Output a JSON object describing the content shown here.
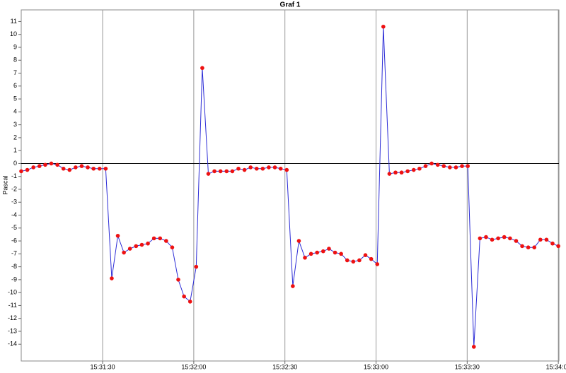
{
  "chart_data": {
    "type": "line",
    "title": "Graf 1",
    "y_label": "Pascal",
    "x": [
      55863.2,
      55865.2,
      55867.2,
      55869.2,
      55871.1,
      55873.1,
      55875.1,
      55877.1,
      55879.1,
      55881.1,
      55883.1,
      55885.1,
      55887.0,
      55889.0,
      55891.0,
      55893.0,
      55895.0,
      55897.0,
      55899.0,
      55901.0,
      55902.9,
      55904.9,
      55906.9,
      55908.9,
      55910.9,
      55912.9,
      55914.9,
      55916.8,
      55918.8,
      55920.8,
      55922.8,
      55924.8,
      55926.8,
      55928.8,
      55930.8,
      55932.7,
      55934.7,
      55936.7,
      55938.7,
      55940.7,
      55942.7,
      55944.7,
      55946.7,
      55948.6,
      55950.6,
      55952.6,
      55954.6,
      55956.6,
      55958.6,
      55960.6,
      55962.6,
      55964.5,
      55966.5,
      55968.5,
      55970.5,
      55972.5,
      55974.5,
      55976.5,
      55978.4,
      55980.4,
      55982.4,
      55984.4,
      55986.4,
      55988.4,
      55990.4,
      55992.4,
      55994.3,
      55996.3,
      55998.3,
      56000.3,
      56002.3,
      56004.3,
      56006.3,
      56008.3,
      56010.2,
      56012.2,
      56014.2,
      56016.2,
      56018.2,
      56020.2,
      56022.2,
      56024.1,
      56026.1,
      56028.1,
      56030.1,
      56032.1,
      56034.1,
      56036.1,
      56038.1,
      56040.0
    ],
    "series": [
      {
        "color": "#2b2bd6",
        "marker_color": "#ee1111",
        "values": [
          -0.6,
          -0.5,
          -0.3,
          -0.2,
          -0.1,
          0.0,
          -0.1,
          -0.4,
          -0.5,
          -0.3,
          -0.2,
          -0.3,
          -0.4,
          -0.4,
          -0.4,
          -8.9,
          -5.6,
          -6.9,
          -6.6,
          -6.4,
          -6.3,
          -6.2,
          -5.8,
          -5.8,
          -6.0,
          -6.5,
          -9.0,
          -10.3,
          -10.7,
          -8.0,
          7.4,
          -0.8,
          -0.6,
          -0.6,
          -0.6,
          -0.6,
          -0.4,
          -0.5,
          -0.3,
          -0.4,
          -0.4,
          -0.3,
          -0.3,
          -0.4,
          -0.5,
          -9.5,
          -6.0,
          -7.3,
          -7.0,
          -6.9,
          -6.8,
          -6.6,
          -6.9,
          -7.0,
          -7.5,
          -7.6,
          -7.5,
          -7.1,
          -7.4,
          -7.8,
          10.6,
          -0.8,
          -0.7,
          -0.7,
          -0.6,
          -0.5,
          -0.4,
          -0.2,
          0.0,
          -0.1,
          -0.2,
          -0.3,
          -0.3,
          -0.2,
          -0.2,
          -14.2,
          -5.8,
          -5.7,
          -5.9,
          -5.8,
          -5.7,
          -5.8,
          -6.0,
          -6.4,
          -6.5,
          -6.5,
          -5.9,
          -5.9,
          -6.2,
          -6.4
        ]
      }
    ],
    "xlim": [
      55863.2,
      56040.2
    ],
    "xticks": [
      {
        "value": 55890,
        "label": "15:31:30"
      },
      {
        "value": 55920,
        "label": "15:32:00"
      },
      {
        "value": 55950,
        "label": "15:32:30"
      },
      {
        "value": 55980,
        "label": "15:33:00"
      },
      {
        "value": 56010,
        "label": "15:33:30"
      },
      {
        "value": 56040,
        "label": "15:34:00"
      }
    ],
    "ylim": [
      -15.3,
      11.9
    ],
    "yticks": [
      -14,
      -13,
      -12,
      -11,
      -10,
      -9,
      -8,
      -7,
      -6,
      -5,
      -4,
      -3,
      -2,
      -1,
      0,
      1,
      2,
      3,
      4,
      5,
      6,
      7,
      8,
      9,
      10,
      11
    ],
    "grid": "x"
  }
}
